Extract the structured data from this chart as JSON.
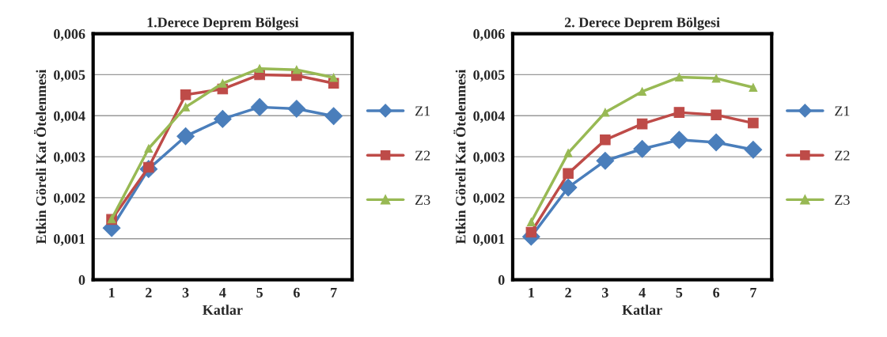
{
  "chart_data": [
    {
      "type": "line",
      "title": "1.Derece Deprem Bölgesi",
      "xlabel": "Katlar",
      "ylabel": "Etkin Göreli Kat Ötelenmesi",
      "categories": [
        "1",
        "2",
        "3",
        "4",
        "5",
        "6",
        "7"
      ],
      "series": [
        {
          "name": "Z1",
          "color": "#4a7ebb",
          "marker": "diamond",
          "values": [
            0.00126,
            0.0027,
            0.0035,
            0.00392,
            0.00421,
            0.00417,
            0.00399
          ]
        },
        {
          "name": "Z2",
          "color": "#be4b48",
          "marker": "square",
          "values": [
            0.00147,
            0.00274,
            0.00451,
            0.00465,
            0.005,
            0.00498,
            0.00479
          ]
        },
        {
          "name": "Z3",
          "color": "#98b954",
          "marker": "triangle",
          "values": [
            0.00148,
            0.0032,
            0.00421,
            0.00479,
            0.00515,
            0.00512,
            0.00493
          ]
        }
      ],
      "ylim": [
        0,
        0.006
      ],
      "yticks": [
        {
          "value": 0,
          "label": "0"
        },
        {
          "value": 0.001,
          "label": "0,001"
        },
        {
          "value": 0.002,
          "label": "0,002"
        },
        {
          "value": 0.003,
          "label": "0,003"
        },
        {
          "value": 0.004,
          "label": "0,004"
        },
        {
          "value": 0.005,
          "label": "0,005"
        },
        {
          "value": 0.006,
          "label": "0,006"
        }
      ],
      "grid": "y",
      "legend": "right",
      "line_style": "solid"
    },
    {
      "type": "line",
      "title": "2. Derece Deprem Bölgesi",
      "xlabel": "Katlar",
      "ylabel": "Etkin Göreli Kat Ötelenmesi",
      "categories": [
        "1",
        "2",
        "3",
        "4",
        "5",
        "6",
        "7"
      ],
      "series": [
        {
          "name": "Z1",
          "color": "#4a7ebb",
          "marker": "diamond",
          "values": [
            0.00105,
            0.00225,
            0.0029,
            0.00319,
            0.00341,
            0.00335,
            0.00317
          ]
        },
        {
          "name": "Z2",
          "color": "#be4b48",
          "marker": "square",
          "values": [
            0.00116,
            0.00259,
            0.00341,
            0.0038,
            0.00408,
            0.00402,
            0.00382
          ]
        },
        {
          "name": "Z3",
          "color": "#98b954",
          "marker": "triangle",
          "values": [
            0.00141,
            0.00309,
            0.00408,
            0.00459,
            0.00494,
            0.00491,
            0.00469
          ]
        }
      ],
      "ylim": [
        0,
        0.006
      ],
      "yticks": [
        {
          "value": 0,
          "label": "0"
        },
        {
          "value": 0.001,
          "label": "0,001"
        },
        {
          "value": 0.002,
          "label": "0,002"
        },
        {
          "value": 0.003,
          "label": "0,003"
        },
        {
          "value": 0.004,
          "label": "0,004"
        },
        {
          "value": 0.005,
          "label": "0,005"
        },
        {
          "value": 0.006,
          "label": "0,006"
        }
      ],
      "grid": "y",
      "legend": "right",
      "line_style": "solid"
    }
  ]
}
